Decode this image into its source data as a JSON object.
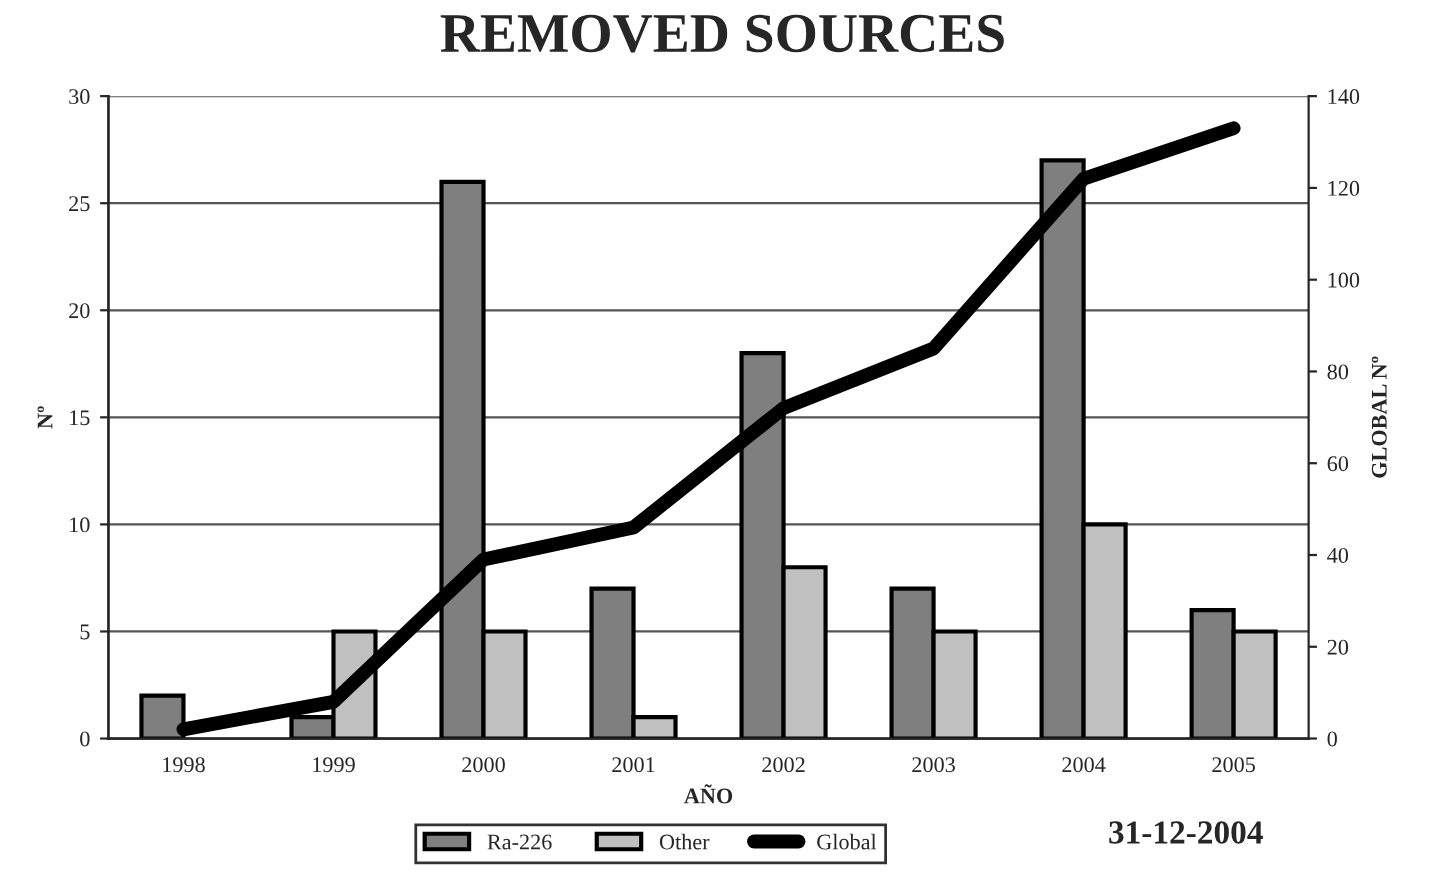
{
  "chart_data": {
    "type": "bar",
    "title": "REMOVED SOURCES",
    "xlabel": "AÑO",
    "ylabel": "Nº",
    "y2label": "GLOBAL Nº",
    "categories": [
      "1998",
      "1999",
      "2000",
      "2001",
      "2002",
      "2003",
      "2004",
      "2005"
    ],
    "series": [
      {
        "name": "Ra-226",
        "color": "#7f7f7f",
        "values": [
          2,
          1,
          26,
          7,
          18,
          7,
          27,
          6
        ]
      },
      {
        "name": "Other",
        "color": "#c0c0c0",
        "values": [
          null,
          5,
          5,
          1,
          8,
          5,
          10,
          5
        ]
      },
      {
        "name": "Global",
        "type": "line",
        "axis": "y2",
        "color": "#000000",
        "values": [
          2,
          8,
          39,
          46,
          72,
          85,
          122,
          133
        ]
      }
    ],
    "ylim": [
      0,
      30
    ],
    "yticks": [
      0,
      5,
      10,
      15,
      20,
      25,
      30
    ],
    "y2lim": [
      0,
      140
    ],
    "y2ticks": [
      0,
      20,
      40,
      60,
      80,
      100,
      120,
      140
    ],
    "grid": "y",
    "legend": "bottom",
    "annotations": [
      "31-12-2004"
    ]
  }
}
